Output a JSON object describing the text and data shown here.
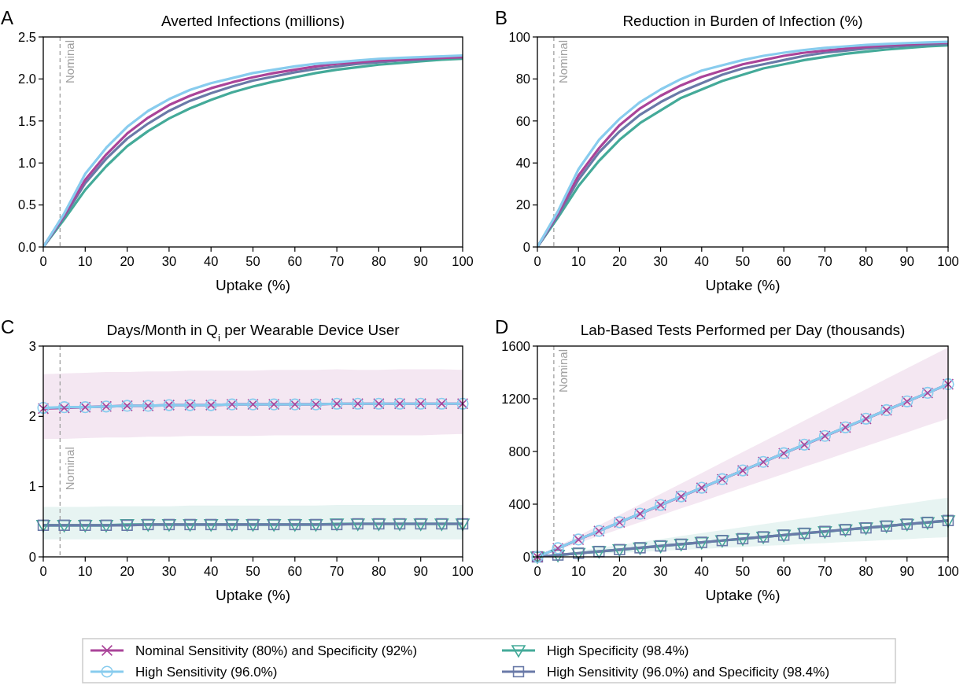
{
  "chart_data": [
    {
      "type": "line",
      "title": "Averted Infections (millions)",
      "xlabel": "Uptake (%)",
      "annotations": [
        "A"
      ],
      "marker": "none",
      "grid": false,
      "legend": false,
      "x": [
        0,
        5,
        10,
        15,
        20,
        25,
        30,
        35,
        40,
        45,
        50,
        55,
        60,
        65,
        70,
        75,
        80,
        85,
        90,
        95,
        100
      ],
      "xlim": [
        0,
        100
      ],
      "xticks": [
        0,
        10,
        20,
        30,
        40,
        50,
        60,
        70,
        80,
        90,
        100
      ],
      "ylim": [
        0,
        2.5
      ],
      "yticks": [
        {
          "value": 0,
          "label": "0.0"
        },
        {
          "value": 0.5,
          "label": "0.5"
        },
        {
          "value": 1,
          "label": "1.0"
        },
        {
          "value": 1.5,
          "label": "1.5"
        },
        {
          "value": 2,
          "label": "2.0"
        },
        {
          "value": 2.5,
          "label": "2.5"
        }
      ],
      "ref_lines": [
        {
          "axis": "x",
          "value": 4,
          "label": "Nominal",
          "color": "#a0a0a0",
          "line_style": "dashed"
        }
      ],
      "series": [
        {
          "color": "#44aa99",
          "values": [
            0,
            0.33,
            0.68,
            0.96,
            1.2,
            1.38,
            1.53,
            1.65,
            1.75,
            1.84,
            1.91,
            1.97,
            2.02,
            2.07,
            2.11,
            2.14,
            2.17,
            2.19,
            2.21,
            2.23,
            2.24
          ]
        },
        {
          "color": "#6a7aa8",
          "values": [
            0,
            0.36,
            0.76,
            1.05,
            1.29,
            1.47,
            1.62,
            1.74,
            1.83,
            1.91,
            1.98,
            2.03,
            2.08,
            2.12,
            2.15,
            2.18,
            2.2,
            2.22,
            2.23,
            2.25,
            2.26
          ]
        },
        {
          "color": "#aa4499",
          "values": [
            0,
            0.38,
            0.8,
            1.1,
            1.35,
            1.54,
            1.69,
            1.8,
            1.89,
            1.96,
            2.02,
            2.07,
            2.11,
            2.15,
            2.18,
            2.2,
            2.22,
            2.23,
            2.24,
            2.25,
            2.26
          ]
        },
        {
          "color": "#88ccee",
          "values": [
            0,
            0.4,
            0.87,
            1.18,
            1.43,
            1.62,
            1.76,
            1.87,
            1.95,
            2.01,
            2.07,
            2.11,
            2.15,
            2.18,
            2.2,
            2.22,
            2.24,
            2.25,
            2.26,
            2.27,
            2.28
          ]
        }
      ]
    },
    {
      "type": "line",
      "title": "Reduction in Burden of Infection (%)",
      "xlabel": "Uptake (%)",
      "annotations": [
        "B"
      ],
      "marker": "none",
      "grid": false,
      "legend": false,
      "x": [
        0,
        5,
        10,
        15,
        20,
        25,
        30,
        35,
        40,
        45,
        50,
        55,
        60,
        65,
        70,
        75,
        80,
        85,
        90,
        95,
        100
      ],
      "xlim": [
        0,
        100
      ],
      "xticks": [
        0,
        10,
        20,
        30,
        40,
        50,
        60,
        70,
        80,
        90,
        100
      ],
      "ylim": [
        0,
        100
      ],
      "yticks": [
        0,
        20,
        40,
        60,
        80,
        100
      ],
      "ref_lines": [
        {
          "axis": "x",
          "value": 4,
          "label": "Nominal",
          "color": "#a0a0a0",
          "line_style": "dashed"
        }
      ],
      "series": [
        {
          "color": "#44aa99",
          "values": [
            0,
            14,
            29,
            41,
            51,
            59,
            65,
            71,
            75,
            79,
            82,
            85,
            87,
            89,
            90.5,
            92,
            93,
            94,
            94.8,
            95.5,
            96
          ]
        },
        {
          "color": "#6a7aa8",
          "values": [
            0,
            15,
            32,
            45,
            55,
            63,
            69,
            74,
            78,
            82,
            85,
            87,
            89,
            91,
            92.5,
            93.5,
            94.5,
            95.2,
            95.8,
            96.3,
            96.7
          ]
        },
        {
          "color": "#aa4499",
          "values": [
            0,
            16,
            34,
            47,
            58,
            66,
            72,
            77,
            81,
            84,
            87,
            89,
            91,
            92.5,
            93.5,
            94.5,
            95.3,
            96,
            96.5,
            97,
            97.3
          ]
        },
        {
          "color": "#88ccee",
          "values": [
            0,
            17,
            37,
            51,
            61,
            69,
            75,
            80,
            84,
            86.5,
            89,
            91,
            92.5,
            93.8,
            94.8,
            95.5,
            96.2,
            96.7,
            97.1,
            97.4,
            97.7
          ]
        }
      ]
    },
    {
      "type": "line",
      "title": "Days/Month in Q$_{i}$ per Wearable Device User",
      "xlabel": "Uptake (%)",
      "annotations": [
        "C"
      ],
      "grid": false,
      "legend": false,
      "x": [
        0,
        5,
        10,
        15,
        20,
        25,
        30,
        35,
        40,
        45,
        50,
        55,
        60,
        65,
        70,
        75,
        80,
        85,
        90,
        95,
        100
      ],
      "xlim": [
        0,
        100
      ],
      "xticks": [
        0,
        10,
        20,
        30,
        40,
        50,
        60,
        70,
        80,
        90,
        100
      ],
      "ylim": [
        0,
        3
      ],
      "yticks": [
        0,
        1,
        2,
        3
      ],
      "ref_lines": [
        {
          "axis": "x",
          "value": 4,
          "label": "Nominal",
          "color": "#a0a0a0",
          "line_style": "dashed"
        }
      ],
      "series": [
        {
          "color": "#44aa99",
          "marker": "triangle",
          "values": [
            0.45,
            0.45,
            0.45,
            0.45,
            0.46,
            0.46,
            0.46,
            0.46,
            0.46,
            0.46,
            0.46,
            0.46,
            0.46,
            0.46,
            0.47,
            0.47,
            0.47,
            0.47,
            0.47,
            0.47,
            0.47
          ],
          "lower": [
            0.25,
            0.25,
            0.25,
            0.25,
            0.25,
            0.25,
            0.25,
            0.25,
            0.25,
            0.25,
            0.25,
            0.25,
            0.25,
            0.25,
            0.25,
            0.25,
            0.25,
            0.25,
            0.25,
            0.25,
            0.25
          ],
          "upper": [
            0.71,
            0.71,
            0.71,
            0.72,
            0.72,
            0.72,
            0.72,
            0.73,
            0.73,
            0.73,
            0.73,
            0.73,
            0.73,
            0.73,
            0.74,
            0.74,
            0.74,
            0.74,
            0.74,
            0.74,
            0.74
          ]
        },
        {
          "color": "#6a7aa8",
          "marker": "square",
          "values": [
            0.45,
            0.45,
            0.45,
            0.45,
            0.45,
            0.46,
            0.46,
            0.46,
            0.46,
            0.46,
            0.46,
            0.46,
            0.46,
            0.46,
            0.46,
            0.47,
            0.47,
            0.47,
            0.47,
            0.47,
            0.47
          ]
        },
        {
          "color": "#aa4499",
          "marker": "cross",
          "values": [
            2.11,
            2.12,
            2.13,
            2.14,
            2.15,
            2.15,
            2.16,
            2.16,
            2.16,
            2.17,
            2.17,
            2.17,
            2.17,
            2.17,
            2.18,
            2.18,
            2.18,
            2.18,
            2.18,
            2.18,
            2.18
          ],
          "lower": [
            1.68,
            1.68,
            1.69,
            1.7,
            1.7,
            1.71,
            1.71,
            1.72,
            1.72,
            1.72,
            1.72,
            1.73,
            1.73,
            1.73,
            1.73,
            1.73,
            1.73,
            1.73,
            1.73,
            1.74,
            1.75
          ],
          "upper": [
            2.6,
            2.61,
            2.62,
            2.63,
            2.63,
            2.64,
            2.64,
            2.65,
            2.65,
            2.65,
            2.65,
            2.66,
            2.66,
            2.66,
            2.67,
            2.66,
            2.66,
            2.67,
            2.67,
            2.67,
            2.66
          ]
        },
        {
          "color": "#88ccee",
          "marker": "circle",
          "values": [
            2.12,
            2.13,
            2.13,
            2.14,
            2.15,
            2.15,
            2.16,
            2.16,
            2.16,
            2.17,
            2.17,
            2.17,
            2.17,
            2.17,
            2.18,
            2.18,
            2.18,
            2.18,
            2.18,
            2.18,
            2.18
          ]
        }
      ]
    },
    {
      "type": "line",
      "title": "Lab-Based Tests Performed per Day (thousands)",
      "xlabel": "Uptake (%)",
      "annotations": [
        "D"
      ],
      "grid": false,
      "legend": "bottom",
      "x": [
        0,
        5,
        10,
        15,
        20,
        25,
        30,
        35,
        40,
        45,
        50,
        55,
        60,
        65,
        70,
        75,
        80,
        85,
        90,
        95,
        100
      ],
      "xlim": [
        0,
        100
      ],
      "xticks": [
        0,
        10,
        20,
        30,
        40,
        50,
        60,
        70,
        80,
        90,
        100
      ],
      "ylim": [
        0,
        1600
      ],
      "yticks": [
        0,
        400,
        800,
        1200,
        1600
      ],
      "ref_lines": [
        {
          "axis": "x",
          "value": 4,
          "label": "Nominal",
          "color": "#a0a0a0",
          "line_style": "dashed"
        }
      ],
      "series": [
        {
          "name": "High Specificity (98.4%)",
          "color": "#44aa99",
          "marker": "triangle",
          "values": [
            0,
            13,
            27,
            41,
            55,
            68,
            82,
            96,
            110,
            124,
            137,
            151,
            165,
            179,
            192,
            206,
            220,
            234,
            248,
            261,
            275
          ],
          "lower": [
            0,
            8,
            15,
            23,
            30,
            38,
            45,
            53,
            60,
            68,
            75,
            83,
            90,
            98,
            105,
            113,
            120,
            128,
            135,
            143,
            150
          ],
          "upper": [
            0,
            23,
            45,
            68,
            90,
            113,
            135,
            158,
            180,
            203,
            225,
            248,
            270,
            293,
            315,
            338,
            360,
            383,
            405,
            428,
            450
          ]
        },
        {
          "name": "High Sensitivity (96.0%) and Specificity (98.4%)",
          "color": "#6a7aa8",
          "marker": "square",
          "values": [
            0,
            14,
            28,
            41,
            55,
            69,
            83,
            96,
            110,
            124,
            138,
            152,
            165,
            179,
            193,
            207,
            220,
            234,
            248,
            262,
            276
          ]
        },
        {
          "name": "Nominal Sensitivity (80%) and Specificity (92%)",
          "color": "#aa4499",
          "marker": "cross",
          "values": [
            0,
            65,
            131,
            196,
            262,
            327,
            393,
            458,
            524,
            589,
            655,
            720,
            786,
            851,
            917,
            982,
            1048,
            1113,
            1179,
            1244,
            1310
          ],
          "lower": [
            0,
            53,
            105,
            158,
            210,
            263,
            315,
            368,
            420,
            473,
            525,
            578,
            630,
            683,
            735,
            788,
            840,
            893,
            945,
            998,
            1050
          ],
          "upper": [
            0,
            80,
            159,
            239,
            318,
            398,
            477,
            557,
            636,
            716,
            795,
            875,
            954,
            1034,
            1113,
            1193,
            1272,
            1352,
            1431,
            1511,
            1590
          ]
        },
        {
          "name": "High Sensitivity (96.0%)",
          "color": "#88ccee",
          "marker": "circle",
          "values": [
            0,
            66,
            132,
            197,
            263,
            328,
            394,
            459,
            525,
            590,
            656,
            721,
            787,
            852,
            918,
            983,
            1049,
            1114,
            1180,
            1245,
            1311
          ]
        }
      ]
    }
  ]
}
